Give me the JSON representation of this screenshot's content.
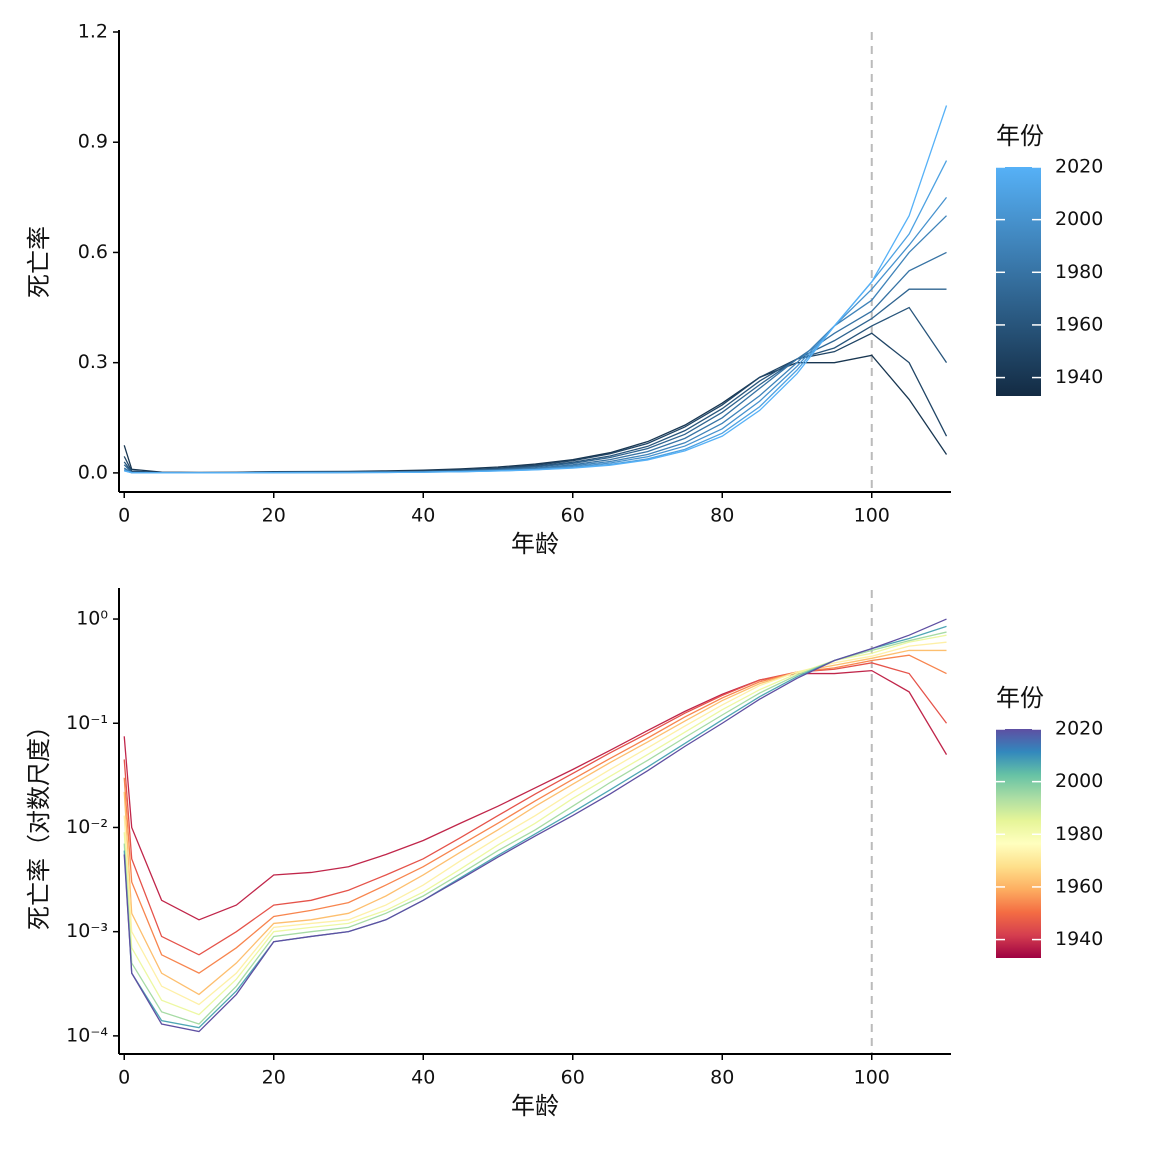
{
  "chart_data": [
    {
      "type": "line",
      "xlabel": "年龄",
      "ylabel": "死亡率",
      "x": [
        0,
        1,
        5,
        10,
        15,
        20,
        25,
        30,
        35,
        40,
        45,
        50,
        55,
        60,
        65,
        70,
        75,
        80,
        85,
        90,
        95,
        100,
        105,
        110
      ],
      "series": [
        {
          "name": "1940",
          "color": "#183651",
          "values": [
            0.075,
            0.01,
            0.002,
            0.0013,
            0.0018,
            0.0035,
            0.0037,
            0.0042,
            0.0055,
            0.0075,
            0.011,
            0.016,
            0.024,
            0.036,
            0.055,
            0.085,
            0.13,
            0.19,
            0.26,
            0.3,
            0.3,
            0.32,
            0.2,
            0.05
          ]
        },
        {
          "name": "1950",
          "color": "#204566",
          "values": [
            0.045,
            0.005,
            0.0009,
            0.0006,
            0.001,
            0.0018,
            0.002,
            0.0025,
            0.0035,
            0.005,
            0.008,
            0.013,
            0.021,
            0.033,
            0.052,
            0.08,
            0.125,
            0.185,
            0.26,
            0.31,
            0.33,
            0.38,
            0.3,
            0.1
          ]
        },
        {
          "name": "1960",
          "color": "#28557B",
          "values": [
            0.03,
            0.003,
            0.0006,
            0.0004,
            0.0007,
            0.0014,
            0.0016,
            0.0019,
            0.0028,
            0.0042,
            0.0068,
            0.011,
            0.018,
            0.029,
            0.046,
            0.072,
            0.115,
            0.175,
            0.25,
            0.31,
            0.34,
            0.4,
            0.45,
            0.3
          ]
        },
        {
          "name": "1970",
          "color": "#2F6490",
          "values": [
            0.022,
            0.0015,
            0.0004,
            0.00025,
            0.0005,
            0.0012,
            0.0013,
            0.0015,
            0.0022,
            0.0035,
            0.0058,
            0.0095,
            0.016,
            0.026,
            0.042,
            0.066,
            0.105,
            0.165,
            0.24,
            0.31,
            0.36,
            0.42,
            0.5,
            0.5
          ]
        },
        {
          "name": "1980",
          "color": "#3773A4",
          "values": [
            0.013,
            0.001,
            0.0003,
            0.0002,
            0.0004,
            0.0011,
            0.0012,
            0.0013,
            0.0018,
            0.0028,
            0.0048,
            0.008,
            0.013,
            0.022,
            0.036,
            0.058,
            0.094,
            0.15,
            0.23,
            0.31,
            0.38,
            0.44,
            0.55,
            0.6
          ]
        },
        {
          "name": "1990",
          "color": "#3F83B9",
          "values": [
            0.009,
            0.0007,
            0.00022,
            0.00016,
            0.00035,
            0.001,
            0.0011,
            0.0012,
            0.0016,
            0.0024,
            0.004,
            0.0068,
            0.011,
            0.019,
            0.031,
            0.05,
            0.082,
            0.135,
            0.21,
            0.3,
            0.4,
            0.47,
            0.6,
            0.7
          ]
        },
        {
          "name": "2000",
          "color": "#4792CE",
          "values": [
            0.007,
            0.0005,
            0.00017,
            0.00013,
            0.0003,
            0.0009,
            0.001,
            0.0011,
            0.0015,
            0.0022,
            0.0036,
            0.006,
            0.0095,
            0.016,
            0.027,
            0.044,
            0.073,
            0.12,
            0.195,
            0.29,
            0.4,
            0.5,
            0.62,
            0.75
          ]
        },
        {
          "name": "2010",
          "color": "#4EA2E2",
          "values": [
            0.006,
            0.0004,
            0.00014,
            0.00012,
            0.00027,
            0.0008,
            0.0009,
            0.001,
            0.0013,
            0.002,
            0.0033,
            0.0054,
            0.0087,
            0.014,
            0.023,
            0.038,
            0.064,
            0.108,
            0.18,
            0.28,
            0.4,
            0.52,
            0.65,
            0.85
          ]
        },
        {
          "name": "2020",
          "color": "#56B1F7",
          "values": [
            0.0055,
            0.0004,
            0.00013,
            0.00011,
            0.00025,
            0.0008,
            0.0009,
            0.001,
            0.0013,
            0.002,
            0.0032,
            0.0052,
            0.0083,
            0.013,
            0.021,
            0.035,
            0.06,
            0.1,
            0.17,
            0.27,
            0.4,
            0.52,
            0.7,
            1.0
          ]
        }
      ],
      "xlim": [
        -0.7,
        110.6
      ],
      "xticks": [
        0,
        20,
        40,
        60,
        80,
        100
      ],
      "ylim": [
        -0.052,
        1.2
      ],
      "yticks": [
        {
          "value": 0,
          "label": "0.0"
        },
        0.3,
        0.6,
        0.9,
        1.2
      ],
      "log_y": false,
      "vline": 100,
      "legend": {
        "title": "年份",
        "ticks": [
          1940,
          1960,
          1980,
          2000,
          2020
        ],
        "range": [
          1933,
          2020
        ],
        "colors": [
          "#132B43",
          "#56B1F7"
        ]
      }
    },
    {
      "type": "line",
      "xlabel": "年龄",
      "ylabel": "死亡率（对数尺度）",
      "x": [
        0,
        1,
        5,
        10,
        15,
        20,
        25,
        30,
        35,
        40,
        45,
        50,
        55,
        60,
        65,
        70,
        75,
        80,
        85,
        90,
        95,
        100,
        105,
        110
      ],
      "series": [
        {
          "name": "1940",
          "color": "#C0264A",
          "values": [
            0.075,
            0.01,
            0.002,
            0.0013,
            0.0018,
            0.0035,
            0.0037,
            0.0042,
            0.0055,
            0.0075,
            0.011,
            0.016,
            0.024,
            0.036,
            0.055,
            0.085,
            0.13,
            0.19,
            0.26,
            0.3,
            0.3,
            0.32,
            0.2,
            0.05
          ]
        },
        {
          "name": "1950",
          "color": "#E5534A",
          "values": [
            0.045,
            0.005,
            0.0009,
            0.0006,
            0.001,
            0.0018,
            0.002,
            0.0025,
            0.0035,
            0.005,
            0.008,
            0.013,
            0.021,
            0.033,
            0.052,
            0.08,
            0.125,
            0.185,
            0.26,
            0.31,
            0.33,
            0.38,
            0.3,
            0.1
          ]
        },
        {
          "name": "1960",
          "color": "#F7854E",
          "values": [
            0.03,
            0.003,
            0.0006,
            0.0004,
            0.0007,
            0.0014,
            0.0016,
            0.0019,
            0.0028,
            0.0042,
            0.0068,
            0.011,
            0.018,
            0.029,
            0.046,
            0.072,
            0.115,
            0.175,
            0.25,
            0.31,
            0.34,
            0.4,
            0.45,
            0.3
          ]
        },
        {
          "name": "1970",
          "color": "#FDBF6F",
          "values": [
            0.022,
            0.0015,
            0.0004,
            0.00025,
            0.0005,
            0.0012,
            0.0013,
            0.0015,
            0.0022,
            0.0035,
            0.0058,
            0.0095,
            0.016,
            0.026,
            0.042,
            0.066,
            0.105,
            0.165,
            0.24,
            0.31,
            0.36,
            0.42,
            0.5,
            0.5
          ]
        },
        {
          "name": "1980",
          "color": "#FEF0A7",
          "values": [
            0.013,
            0.001,
            0.0003,
            0.0002,
            0.0004,
            0.0011,
            0.0012,
            0.0013,
            0.0018,
            0.0028,
            0.0048,
            0.008,
            0.013,
            0.022,
            0.036,
            0.058,
            0.094,
            0.15,
            0.23,
            0.31,
            0.38,
            0.44,
            0.55,
            0.6
          ]
        },
        {
          "name": "1990",
          "color": "#EDF8A2",
          "values": [
            0.009,
            0.0007,
            0.00022,
            0.00016,
            0.00035,
            0.001,
            0.0011,
            0.0012,
            0.0016,
            0.0024,
            0.004,
            0.0068,
            0.011,
            0.019,
            0.031,
            0.05,
            0.082,
            0.135,
            0.21,
            0.3,
            0.4,
            0.47,
            0.6,
            0.7
          ]
        },
        {
          "name": "2000",
          "color": "#A6DBA4",
          "values": [
            0.007,
            0.0005,
            0.00017,
            0.00013,
            0.0003,
            0.0009,
            0.001,
            0.0011,
            0.0015,
            0.0022,
            0.0036,
            0.006,
            0.0095,
            0.016,
            0.027,
            0.044,
            0.073,
            0.12,
            0.195,
            0.29,
            0.4,
            0.5,
            0.62,
            0.75
          ]
        },
        {
          "name": "2010",
          "color": "#4FA7B4",
          "values": [
            0.006,
            0.0004,
            0.00014,
            0.00012,
            0.00027,
            0.0008,
            0.0009,
            0.001,
            0.0013,
            0.002,
            0.0033,
            0.0054,
            0.0087,
            0.014,
            0.023,
            0.038,
            0.064,
            0.108,
            0.18,
            0.28,
            0.4,
            0.52,
            0.65,
            0.85
          ]
        },
        {
          "name": "2020",
          "color": "#5E4FA2",
          "values": [
            0.0055,
            0.0004,
            0.00013,
            0.00011,
            0.00025,
            0.0008,
            0.0009,
            0.001,
            0.0013,
            0.002,
            0.0032,
            0.0052,
            0.0083,
            0.013,
            0.021,
            0.035,
            0.06,
            0.1,
            0.17,
            0.27,
            0.4,
            0.52,
            0.7,
            1.0
          ]
        }
      ],
      "xlim": [
        -0.7,
        110.6
      ],
      "xticks": [
        0,
        20,
        40,
        60,
        80,
        100
      ],
      "ylim": [
        6.7e-05,
        1.9
      ],
      "yticks": [
        {
          "value": 0.0001,
          "label": "10⁻⁴"
        },
        {
          "value": 0.001,
          "label": "10⁻³"
        },
        {
          "value": 0.01,
          "label": "10⁻²"
        },
        {
          "value": 0.1,
          "label": "10⁻¹"
        },
        {
          "value": 1,
          "label": "10⁰"
        }
      ],
      "log_y": true,
      "vline": 100,
      "legend": {
        "title": "年份",
        "ticks": [
          1940,
          1960,
          1980,
          2000,
          2020
        ],
        "range": [
          1933,
          2020
        ],
        "colors": [
          "#9E0142",
          "#D53E4F",
          "#F46D43",
          "#FDAE61",
          "#FEE08B",
          "#FFFFBF",
          "#E6F598",
          "#ABDDA4",
          "#66C2A5",
          "#3288BD",
          "#5E4FA2"
        ]
      }
    }
  ]
}
